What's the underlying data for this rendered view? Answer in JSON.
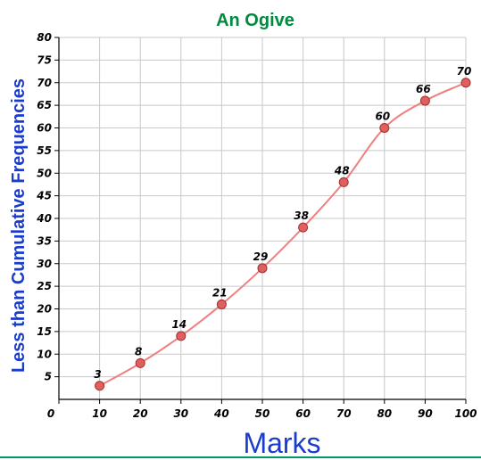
{
  "chart_data": {
    "type": "line",
    "title": "An Ogive",
    "xlabel": "Marks",
    "ylabel": "Less than Cumulative Frequencies",
    "x": [
      10,
      20,
      30,
      40,
      50,
      60,
      70,
      80,
      90,
      100
    ],
    "series": [
      {
        "values": [
          3,
          8,
          14,
          21,
          29,
          38,
          48,
          60,
          66,
          70
        ]
      }
    ],
    "data_labels": [
      "3",
      "8",
      "14",
      "21",
      "29",
      "38",
      "48",
      "60",
      "66",
      "70"
    ],
    "xlim": [
      0,
      100
    ],
    "ylim": [
      0,
      80
    ],
    "xticks": [
      "0",
      "10",
      "20",
      "30",
      "40",
      "50",
      "60",
      "70",
      "80",
      "90",
      "100"
    ],
    "yticks": [
      "5",
      "10",
      "15",
      "20",
      "25",
      "30",
      "35",
      "40",
      "45",
      "50",
      "55",
      "60",
      "65",
      "70",
      "75",
      "80"
    ],
    "grid": true,
    "smooth": true,
    "colors": {
      "title": "#008a3e",
      "axis_label": "#1a3ccc",
      "line": "#f08080",
      "marker_fill": "#e06060",
      "marker_stroke": "#a03030",
      "grid": "#c8c8c8",
      "bottom_rule": "#009966"
    }
  }
}
